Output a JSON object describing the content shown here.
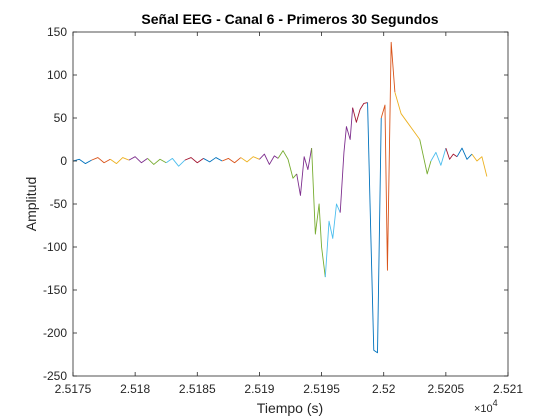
{
  "chart_data": {
    "type": "line",
    "title": "Señal EEG - Canal 6 - Primeros 30 Segundos",
    "xlabel": "Tiempo (s)",
    "ylabel": "Amplitud",
    "xlim": [
      25175,
      25210
    ],
    "ylim": [
      -250,
      150
    ],
    "x_scale_exponent": "×10",
    "x_scale_power": "4",
    "x_tick_labels": [
      "2.5175",
      "2.518",
      "2.5185",
      "2.519",
      "2.5195",
      "2.52",
      "2.5205",
      "2.521"
    ],
    "x_tick_values": [
      25175,
      25180,
      25185,
      25190,
      25195,
      25200,
      25205,
      25210
    ],
    "y_tick_labels": [
      "-250",
      "-200",
      "-150",
      "-100",
      "-50",
      "0",
      "50",
      "100",
      "150"
    ],
    "y_tick_values": [
      -250,
      -200,
      -150,
      -100,
      -50,
      0,
      50,
      100,
      150
    ],
    "grid": false,
    "box": true,
    "colors": [
      "#0072BD",
      "#D95319",
      "#EDB120",
      "#7E2F8E",
      "#77AC30",
      "#4DBEEE",
      "#A2142F"
    ],
    "series": [
      {
        "color_index": 0,
        "x": [
          25175.0,
          25175.5,
          25176.0,
          25176.5
        ],
        "y": [
          0,
          2,
          -3,
          1
        ]
      },
      {
        "color_index": 1,
        "x": [
          25176.5,
          25177.0,
          25177.5,
          25178.0
        ],
        "y": [
          1,
          4,
          -2,
          2
        ]
      },
      {
        "color_index": 2,
        "x": [
          25178.0,
          25178.5,
          25179.0,
          25179.5
        ],
        "y": [
          2,
          -3,
          4,
          1
        ]
      },
      {
        "color_index": 3,
        "x": [
          25179.5,
          25180.0,
          25180.5,
          25181.0
        ],
        "y": [
          1,
          5,
          -2,
          3
        ]
      },
      {
        "color_index": 4,
        "x": [
          25181.0,
          25181.5,
          25182.0,
          25182.5
        ],
        "y": [
          3,
          -4,
          2,
          -2
        ]
      },
      {
        "color_index": 5,
        "x": [
          25182.5,
          25183.0,
          25183.5,
          25184.0
        ],
        "y": [
          -2,
          3,
          -6,
          1
        ]
      },
      {
        "color_index": 6,
        "x": [
          25184.0,
          25184.5,
          25185.0,
          25185.5
        ],
        "y": [
          1,
          4,
          -2,
          3
        ]
      },
      {
        "color_index": 0,
        "x": [
          25185.5,
          25186.0,
          25186.5,
          25187.0
        ],
        "y": [
          3,
          -1,
          4,
          0
        ]
      },
      {
        "color_index": 1,
        "x": [
          25187.0,
          25187.5,
          25188.0,
          25188.5
        ],
        "y": [
          0,
          3,
          -2,
          4
        ]
      },
      {
        "color_index": 2,
        "x": [
          25188.5,
          25189.0,
          25189.5,
          25190.0
        ],
        "y": [
          4,
          -1,
          5,
          2
        ]
      },
      {
        "color_index": 3,
        "x": [
          25190.0,
          25190.4,
          25190.8,
          25191.2,
          25191.5
        ],
        "y": [
          2,
          8,
          -4,
          6,
          3
        ]
      },
      {
        "color_index": 4,
        "x": [
          25191.5,
          25191.9,
          25192.3,
          25192.7,
          25193.0
        ],
        "y": [
          3,
          12,
          2,
          -20,
          -15
        ]
      },
      {
        "color_index": 3,
        "x": [
          25193.0,
          25193.3,
          25193.6,
          25193.9,
          25194.2
        ],
        "y": [
          -15,
          -40,
          5,
          -10,
          15
        ]
      },
      {
        "color_index": 4,
        "x": [
          25194.2,
          25194.5,
          25194.8,
          25195.0,
          25195.3
        ],
        "y": [
          15,
          -85,
          -50,
          -100,
          -135
        ]
      },
      {
        "color_index": 5,
        "x": [
          25195.3,
          25195.6,
          25195.9,
          25196.2,
          25196.5
        ],
        "y": [
          -135,
          -70,
          -90,
          -50,
          -60
        ]
      },
      {
        "color_index": 3,
        "x": [
          25196.5,
          25196.8,
          25197.0,
          25197.3,
          25197.5
        ],
        "y": [
          -60,
          10,
          40,
          25,
          62
        ]
      },
      {
        "color_index": 6,
        "x": [
          25197.5,
          25197.8,
          25198.1,
          25198.4,
          25198.7
        ],
        "y": [
          62,
          45,
          60,
          67,
          68
        ]
      },
      {
        "color_index": 0,
        "x": [
          25198.7,
          25198.9,
          25199.2,
          25199.5,
          25199.8
        ],
        "y": [
          68,
          -50,
          -220,
          -223,
          50
        ]
      },
      {
        "color_index": 1,
        "x": [
          25199.8,
          25200.1,
          25200.3,
          25200.6,
          25200.9
        ],
        "y": [
          50,
          65,
          -127,
          138,
          80
        ]
      },
      {
        "color_index": 2,
        "x": [
          25200.9,
          25201.4,
          25201.9,
          25202.4,
          25202.9
        ],
        "y": [
          80,
          55,
          45,
          35,
          25
        ]
      },
      {
        "color_index": 4,
        "x": [
          25202.9,
          25203.2,
          25203.5,
          25203.8
        ],
        "y": [
          25,
          5,
          -15,
          0
        ]
      },
      {
        "color_index": 5,
        "x": [
          25203.8,
          25204.2,
          25204.6,
          25205.0
        ],
        "y": [
          0,
          10,
          -5,
          15
        ]
      },
      {
        "color_index": 6,
        "x": [
          25205.0,
          25205.3,
          25205.6,
          25205.9
        ],
        "y": [
          15,
          2,
          8,
          5
        ]
      },
      {
        "color_index": 0,
        "x": [
          25205.9,
          25206.3,
          25206.7,
          25207.1
        ],
        "y": [
          5,
          15,
          2,
          8
        ]
      },
      {
        "color_index": 2,
        "x": [
          25207.1,
          25207.5,
          25207.9,
          25208.3
        ],
        "y": [
          8,
          0,
          5,
          -18
        ]
      }
    ]
  }
}
